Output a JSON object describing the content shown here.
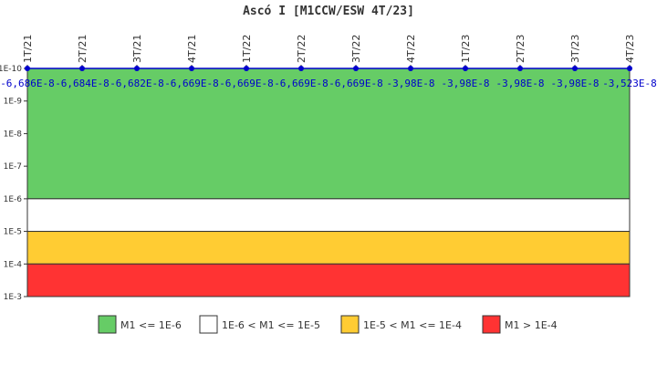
{
  "chart_data": {
    "type": "line",
    "title": "Ascó I [M1CCW/ESW 4T/23]",
    "xlabel": "",
    "ylabel": "",
    "y_scale": "log",
    "y_inverted": true,
    "ylim": [
      1e-10,
      0.001
    ],
    "y_ticks": [
      "1E-10",
      "1E-9",
      "1E-8",
      "1E-7",
      "1E-6",
      "1E-5",
      "1E-4",
      "1E-3"
    ],
    "categories": [
      "1T/21",
      "2T/21",
      "3T/21",
      "4T/21",
      "1T/22",
      "2T/22",
      "3T/22",
      "4T/22",
      "1T/23",
      "2T/23",
      "3T/23",
      "4T/23"
    ],
    "series": [
      {
        "values": [
          -6.686e-08,
          -6.684e-08,
          -6.682e-08,
          -6.669e-08,
          -6.669e-08,
          -6.669e-08,
          -6.669e-08,
          -3.98e-08,
          -3.98e-08,
          -3.98e-08,
          -3.98e-08,
          -3.523e-08
        ],
        "labels": [
          "-6,686E-8",
          "-6,684E-8",
          "-6,682E-8",
          "-6,669E-8",
          "-6,669E-8",
          "-6,669E-8",
          "-6,669E-8",
          "-3,98E-8",
          "-3,98E-8",
          "-3,98E-8",
          "-3,98E-8",
          "-3,523E-8"
        ],
        "color": "#0000cc"
      }
    ],
    "bands": [
      {
        "from": 1e-10,
        "to": 1e-06,
        "color": "#66cc66",
        "label": "M1 <= 1E-6"
      },
      {
        "from": 1e-06,
        "to": 1e-05,
        "color": "#ffffff",
        "label": "1E-6 < M1 <= 1E-5"
      },
      {
        "from": 1e-05,
        "to": 0.0001,
        "color": "#ffcc33",
        "label": "1E-5 < M1 <= 1E-4"
      },
      {
        "from": 0.0001,
        "to": 0.001,
        "color": "#ff3333",
        "label": "M1 > 1E-4"
      }
    ],
    "legend_position": "bottom"
  }
}
